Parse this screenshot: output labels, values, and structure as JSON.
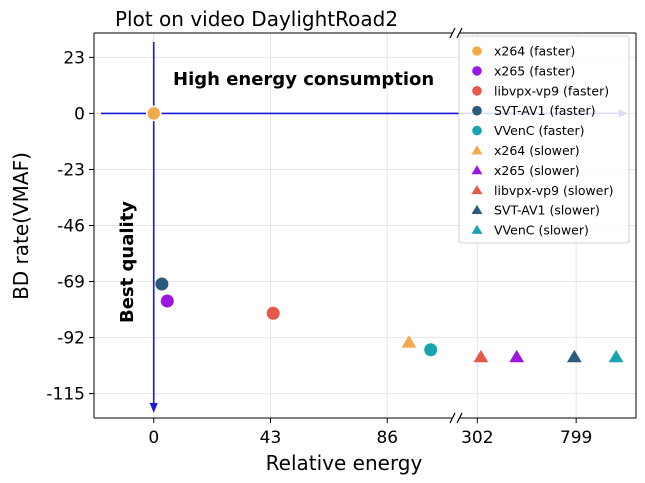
{
  "chart_data": {
    "type": "scatter",
    "title": "Plot on video DaylightRoad2",
    "xlabel": "Relative energy",
    "ylabel": "BD rate(VMAF)",
    "x_tick_labels": [
      "0",
      "43",
      "86",
      "302",
      "799"
    ],
    "y_tick_labels": [
      "23",
      "0",
      "-23",
      "-46",
      "-69",
      "-92",
      "-115"
    ],
    "y_ticks": [
      23,
      0,
      -23,
      -46,
      -69,
      -92,
      -115
    ],
    "ylim": [
      -125,
      33
    ],
    "x_axis_break": true,
    "x_segments": [
      {
        "xlim": [
          -22,
          108
        ],
        "ticks": [
          0,
          43,
          86
        ]
      },
      {
        "xlim": [
          240,
          1100
        ],
        "ticks": [
          302,
          799
        ]
      }
    ],
    "grid": true,
    "legend_position": "top-right",
    "annotations": {
      "high_energy": "High energy consumption",
      "best_quality": "Best quality"
    },
    "reference_point": {
      "x": 0,
      "y": 0,
      "color": "#f2a94a"
    },
    "series": [
      {
        "name": "x264 (faster)",
        "marker": "circle",
        "color": "#f2a94a",
        "points": []
      },
      {
        "name": "x265 (faster)",
        "marker": "circle",
        "color": "#9b16e0",
        "points": [
          [
            5,
            -77
          ]
        ]
      },
      {
        "name": "libvpx-vp9 (faster)",
        "marker": "circle",
        "color": "#e5584a",
        "points": [
          [
            44,
            -82
          ]
        ]
      },
      {
        "name": "SVT-AV1 (faster)",
        "marker": "circle",
        "color": "#2c5a7c",
        "points": [
          [
            3,
            -70
          ]
        ]
      },
      {
        "name": "VVenC (faster)",
        "marker": "circle",
        "color": "#17a4b0",
        "points": [
          [
            102,
            -97
          ]
        ]
      },
      {
        "name": "x264 (slower)",
        "marker": "triangle",
        "color": "#f2a94a",
        "points": [
          [
            94,
            -94
          ]
        ]
      },
      {
        "name": "x265 (slower)",
        "marker": "triangle",
        "color": "#9b16e0",
        "points": [
          [
            500,
            -100
          ]
        ]
      },
      {
        "name": "libvpx-vp9 (slower)",
        "marker": "triangle",
        "color": "#e5584a",
        "points": [
          [
            320,
            -100
          ]
        ]
      },
      {
        "name": "SVT-AV1 (slower)",
        "marker": "triangle",
        "color": "#2c5a7c",
        "points": [
          [
            790,
            -100
          ]
        ]
      },
      {
        "name": "VVenC (slower)",
        "marker": "triangle",
        "color": "#17a4b0",
        "points": [
          [
            1000,
            -100
          ]
        ]
      }
    ]
  }
}
